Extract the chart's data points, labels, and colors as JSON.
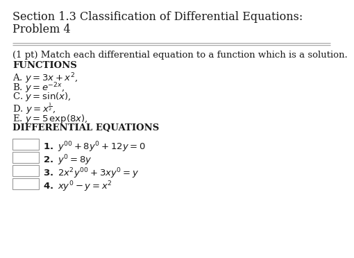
{
  "title_line1": "Section 1.3 Classification of Differential Equations:",
  "title_line2": "Problem 4",
  "background_color": "#ffffff",
  "text_color": "#1a1a1a",
  "title_fontsize": 11.5,
  "body_fontsize": 9.5,
  "prompt": "(1 pt) Match each differential equation to a function which is a solution.",
  "functions_header": "FUNCTIONS",
  "diff_eq_header": "DIFFERENTIAL EQUATIONS",
  "box_edge_color": "#999999"
}
